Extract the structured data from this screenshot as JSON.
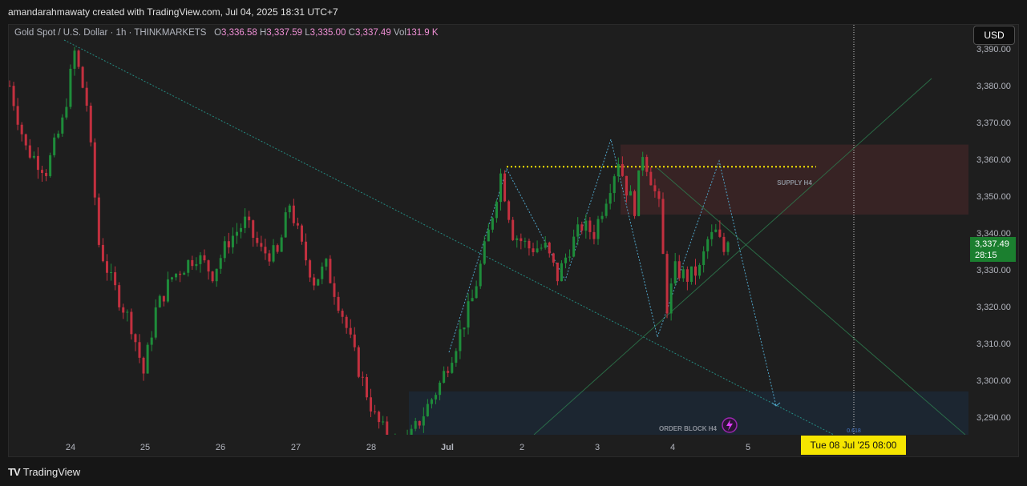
{
  "header": {
    "credit": "amandarahmawaty created with TradingView.com, Jul 04, 2025 18:31 UTC+7"
  },
  "legend": {
    "symbol": "Gold Spot / U.S. Dollar · 1h · THINKMARKETS",
    "open_label": "O",
    "open": "3,336.58",
    "high_label": "H",
    "high": "3,337.59",
    "low_label": "L",
    "low": "3,335.00",
    "close_label": "C",
    "close": "3,337.49",
    "vol_label": "Vol",
    "vol": "131.9 K"
  },
  "currency_button": "USD",
  "price_tag": {
    "price": "3,337.49",
    "countdown": "28:15"
  },
  "crosshair_date": "Tue 08 Jul '25   08:00",
  "zones": {
    "supply": "SUPPLY H4",
    "order_block": "ORDER BLOCK H4",
    "fib": "0.618"
  },
  "footer": {
    "brand": "TradingView"
  },
  "colors": {
    "bull": "#1e8c3a",
    "bear": "#c2303f",
    "supply_zone": "#3a2325",
    "order_block_zone": "#1c2733",
    "accent_yellow": "#f5e500"
  },
  "chart_data": {
    "type": "candlestick",
    "symbol": "XAUUSD",
    "timeframe": "1h",
    "y_axis": {
      "ticks": [
        3290,
        3300,
        3310,
        3320,
        3330,
        3340,
        3350,
        3360,
        3370,
        3380,
        3390
      ],
      "tick_labels": [
        "3,290.00",
        "3,300.00",
        "3,310.00",
        "3,320.00",
        "3,330.00",
        "3,340.00",
        "3,350.00",
        "3,360.00",
        "3,370.00",
        "3,380.00",
        "3,390.00"
      ],
      "range": [
        3285,
        3393
      ]
    },
    "x_axis": {
      "tick_labels": [
        "24",
        "25",
        "26",
        "27",
        "28",
        "Jul",
        "2",
        "3",
        "4",
        "5"
      ]
    },
    "price_path": [
      [
        0,
        3380
      ],
      [
        4,
        3363
      ],
      [
        9,
        3357
      ],
      [
        13,
        3370
      ],
      [
        16,
        3389
      ],
      [
        19,
        3375
      ],
      [
        22,
        3337
      ],
      [
        25,
        3327
      ],
      [
        30,
        3315
      ],
      [
        33,
        3302
      ],
      [
        36,
        3319
      ],
      [
        40,
        3328
      ],
      [
        46,
        3334
      ],
      [
        50,
        3329
      ],
      [
        54,
        3338
      ],
      [
        58,
        3343
      ],
      [
        62,
        3335
      ],
      [
        66,
        3334
      ],
      [
        69,
        3348
      ],
      [
        72,
        3336
      ],
      [
        75,
        3327
      ],
      [
        78,
        3331
      ],
      [
        82,
        3318
      ],
      [
        86,
        3303
      ],
      [
        90,
        3290
      ],
      [
        94,
        3283
      ],
      [
        98,
        3283
      ],
      [
        102,
        3291
      ],
      [
        106,
        3299
      ],
      [
        110,
        3310
      ],
      [
        114,
        3322
      ],
      [
        118,
        3340
      ],
      [
        121,
        3356
      ],
      [
        124,
        3340
      ],
      [
        128,
        3336
      ],
      [
        132,
        3336
      ],
      [
        135,
        3328
      ],
      [
        138,
        3336
      ],
      [
        141,
        3342
      ],
      [
        144,
        3340
      ],
      [
        147,
        3350
      ],
      [
        150,
        3360
      ],
      [
        152,
        3352
      ],
      [
        154,
        3347
      ],
      [
        156,
        3362
      ],
      [
        158,
        3355
      ],
      [
        160,
        3347
      ],
      [
        162,
        3320
      ],
      [
        164,
        3330
      ],
      [
        167,
        3328
      ],
      [
        170,
        3330
      ],
      [
        172,
        3338
      ],
      [
        174,
        3340
      ],
      [
        176,
        3335
      ],
      [
        177,
        3337.49
      ]
    ],
    "candle_count": 178,
    "last_price": 3337.49,
    "drawings": {
      "supply_zone": {
        "label": "SUPPLY H4",
        "price_range": [
          3345,
          3364
        ]
      },
      "order_block": {
        "label": "ORDER BLOCK H4",
        "price_range": [
          3285,
          3297
        ]
      },
      "resistance_level": 3358,
      "fib_label": "0.618"
    }
  }
}
